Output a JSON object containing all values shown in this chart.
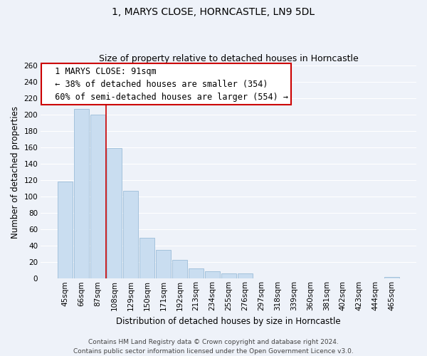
{
  "title": "1, MARYS CLOSE, HORNCASTLE, LN9 5DL",
  "subtitle": "Size of property relative to detached houses in Horncastle",
  "xlabel": "Distribution of detached houses by size in Horncastle",
  "ylabel": "Number of detached properties",
  "bar_labels": [
    "45sqm",
    "66sqm",
    "87sqm",
    "108sqm",
    "129sqm",
    "150sqm",
    "171sqm",
    "192sqm",
    "213sqm",
    "234sqm",
    "255sqm",
    "276sqm",
    "297sqm",
    "318sqm",
    "339sqm",
    "360sqm",
    "381sqm",
    "402sqm",
    "423sqm",
    "444sqm",
    "465sqm"
  ],
  "bar_values": [
    118,
    207,
    200,
    159,
    107,
    50,
    35,
    23,
    12,
    9,
    6,
    6,
    0,
    0,
    0,
    0,
    0,
    0,
    0,
    0,
    2
  ],
  "bar_color_face": "#c9ddf0",
  "bar_color_edge": "#9bbcd8",
  "vline_x_index": 2,
  "vline_color": "#cc0000",
  "ylim": [
    0,
    260
  ],
  "yticks": [
    0,
    20,
    40,
    60,
    80,
    100,
    120,
    140,
    160,
    180,
    200,
    220,
    240,
    260
  ],
  "annotation_title": "1 MARYS CLOSE: 91sqm",
  "annotation_line1": "← 38% of detached houses are smaller (354)",
  "annotation_line2": "60% of semi-detached houses are larger (554) →",
  "box_facecolor": "#ffffff",
  "box_edgecolor": "#cc0000",
  "footer_line1": "Contains HM Land Registry data © Crown copyright and database right 2024.",
  "footer_line2": "Contains public sector information licensed under the Open Government Licence v3.0.",
  "background_color": "#eef2f9",
  "grid_color": "#ffffff",
  "title_fontsize": 10,
  "subtitle_fontsize": 9,
  "axis_label_fontsize": 8.5,
  "tick_fontsize": 7.5,
  "annotation_title_fontsize": 9,
  "annotation_body_fontsize": 8.5,
  "footer_fontsize": 6.5
}
